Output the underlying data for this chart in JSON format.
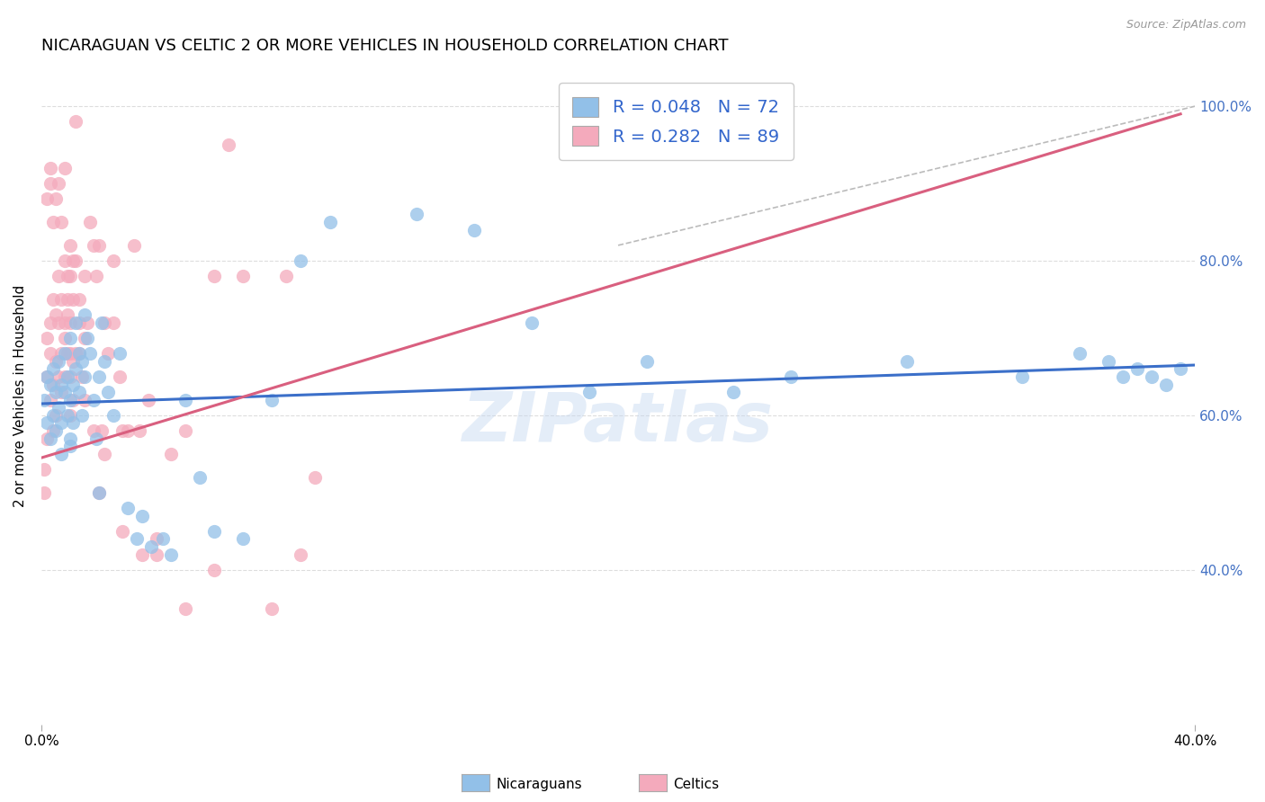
{
  "title": "NICARAGUAN VS CELTIC 2 OR MORE VEHICLES IN HOUSEHOLD CORRELATION CHART",
  "source": "Source: ZipAtlas.com",
  "ylabel": "2 or more Vehicles in Household",
  "xmin": 0.0,
  "xmax": 0.4,
  "ymin": 0.2,
  "ymax": 1.05,
  "xtick_positions": [
    0.0,
    0.4
  ],
  "xtick_labels": [
    "0.0%",
    "40.0%"
  ],
  "ytick_positions": [
    0.4,
    0.6,
    0.8,
    1.0
  ],
  "ytick_labels": [
    "40.0%",
    "60.0%",
    "80.0%",
    "100.0%"
  ],
  "blue_color": "#92C0E8",
  "pink_color": "#F4AABC",
  "blue_line_color": "#3B6FC9",
  "pink_line_color": "#D95F7F",
  "watermark": "ZIPatlas",
  "legend_R_blue": "R = 0.048",
  "legend_N_blue": "N = 72",
  "legend_R_pink": "R = 0.282",
  "legend_N_pink": "N = 89",
  "blue_scatter_x": [
    0.001,
    0.002,
    0.002,
    0.003,
    0.003,
    0.004,
    0.004,
    0.005,
    0.005,
    0.006,
    0.006,
    0.007,
    0.007,
    0.007,
    0.008,
    0.008,
    0.009,
    0.009,
    0.01,
    0.01,
    0.01,
    0.011,
    0.011,
    0.012,
    0.012,
    0.013,
    0.013,
    0.014,
    0.014,
    0.015,
    0.015,
    0.016,
    0.017,
    0.018,
    0.019,
    0.02,
    0.021,
    0.022,
    0.023,
    0.025,
    0.027,
    0.03,
    0.033,
    0.035,
    0.038,
    0.042,
    0.045,
    0.05,
    0.055,
    0.06,
    0.07,
    0.08,
    0.09,
    0.1,
    0.13,
    0.15,
    0.17,
    0.19,
    0.21,
    0.24,
    0.26,
    0.3,
    0.34,
    0.36,
    0.37,
    0.375,
    0.38,
    0.385,
    0.39,
    0.395,
    0.01,
    0.02
  ],
  "blue_scatter_y": [
    0.62,
    0.59,
    0.65,
    0.57,
    0.64,
    0.6,
    0.66,
    0.63,
    0.58,
    0.61,
    0.67,
    0.64,
    0.59,
    0.55,
    0.63,
    0.68,
    0.6,
    0.65,
    0.62,
    0.57,
    0.7,
    0.64,
    0.59,
    0.66,
    0.72,
    0.68,
    0.63,
    0.67,
    0.6,
    0.65,
    0.73,
    0.7,
    0.68,
    0.62,
    0.57,
    0.65,
    0.72,
    0.67,
    0.63,
    0.6,
    0.68,
    0.48,
    0.44,
    0.47,
    0.43,
    0.44,
    0.42,
    0.62,
    0.52,
    0.45,
    0.44,
    0.62,
    0.8,
    0.85,
    0.86,
    0.84,
    0.72,
    0.63,
    0.67,
    0.63,
    0.65,
    0.67,
    0.65,
    0.68,
    0.67,
    0.65,
    0.66,
    0.65,
    0.64,
    0.66,
    0.56,
    0.5
  ],
  "pink_scatter_x": [
    0.001,
    0.001,
    0.002,
    0.002,
    0.002,
    0.003,
    0.003,
    0.003,
    0.004,
    0.004,
    0.004,
    0.005,
    0.005,
    0.005,
    0.006,
    0.006,
    0.006,
    0.007,
    0.007,
    0.007,
    0.008,
    0.008,
    0.008,
    0.009,
    0.009,
    0.009,
    0.01,
    0.01,
    0.01,
    0.01,
    0.011,
    0.011,
    0.011,
    0.012,
    0.012,
    0.013,
    0.013,
    0.014,
    0.015,
    0.015,
    0.016,
    0.017,
    0.018,
    0.019,
    0.02,
    0.021,
    0.022,
    0.023,
    0.025,
    0.027,
    0.028,
    0.03,
    0.032,
    0.034,
    0.037,
    0.04,
    0.045,
    0.05,
    0.06,
    0.065,
    0.07,
    0.08,
    0.085,
    0.09,
    0.095,
    0.01,
    0.011,
    0.012,
    0.002,
    0.003,
    0.003,
    0.004,
    0.005,
    0.006,
    0.007,
    0.008,
    0.02,
    0.025,
    0.008,
    0.009,
    0.01,
    0.013,
    0.015,
    0.018,
    0.022,
    0.028,
    0.035,
    0.04,
    0.05,
    0.06
  ],
  "pink_scatter_y": [
    0.53,
    0.5,
    0.57,
    0.65,
    0.7,
    0.62,
    0.68,
    0.72,
    0.58,
    0.64,
    0.75,
    0.6,
    0.67,
    0.73,
    0.65,
    0.72,
    0.78,
    0.63,
    0.68,
    0.75,
    0.65,
    0.7,
    0.8,
    0.68,
    0.73,
    0.78,
    0.6,
    0.65,
    0.72,
    0.68,
    0.62,
    0.67,
    0.75,
    0.68,
    0.8,
    0.72,
    0.75,
    0.65,
    0.7,
    0.78,
    0.72,
    0.85,
    0.82,
    0.78,
    0.5,
    0.58,
    0.72,
    0.68,
    0.72,
    0.65,
    0.58,
    0.58,
    0.82,
    0.58,
    0.62,
    0.42,
    0.55,
    0.58,
    0.78,
    0.95,
    0.78,
    0.35,
    0.78,
    0.42,
    0.52,
    0.82,
    0.8,
    0.98,
    0.88,
    0.9,
    0.92,
    0.85,
    0.88,
    0.9,
    0.85,
    0.92,
    0.82,
    0.8,
    0.72,
    0.75,
    0.78,
    0.68,
    0.62,
    0.58,
    0.55,
    0.45,
    0.42,
    0.44,
    0.35,
    0.4
  ],
  "blue_trend_x": [
    0.0,
    0.4
  ],
  "blue_trend_y": [
    0.615,
    0.665
  ],
  "pink_trend_x": [
    0.0,
    0.395
  ],
  "pink_trend_y": [
    0.545,
    0.99
  ],
  "dashed_line_x": [
    0.2,
    0.4
  ],
  "dashed_line_y": [
    0.82,
    1.0
  ],
  "legend_label_blue": "Nicaraguans",
  "legend_label_pink": "Celtics",
  "grid_color": "#DDDDDD",
  "title_fontsize": 13,
  "axis_label_fontsize": 11,
  "tick_fontsize": 11,
  "legend_fontsize": 14,
  "dot_size": 120
}
